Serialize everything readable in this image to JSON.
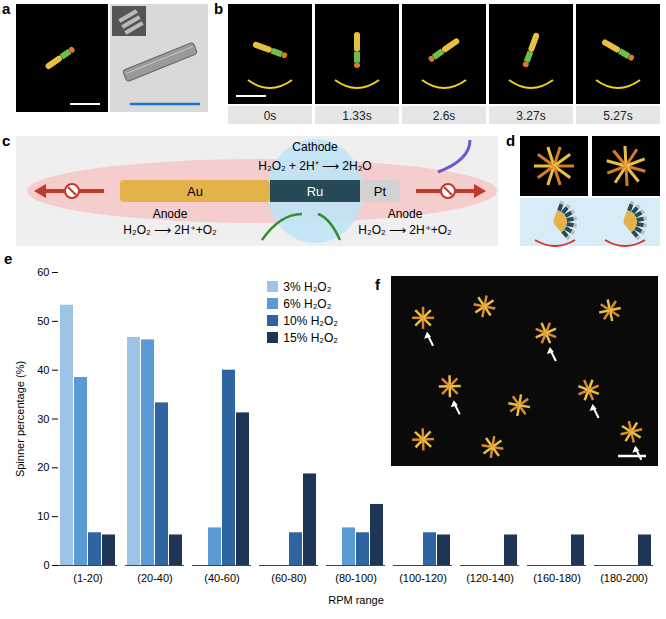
{
  "panels": {
    "a": {
      "label": "a"
    },
    "b": {
      "label": "b",
      "times": [
        "0s",
        "1.33s",
        "2.6s",
        "3.27s",
        "5.27s"
      ]
    },
    "c": {
      "label": "c",
      "segments": [
        "Au",
        "Ru",
        "Pt"
      ],
      "cathode": {
        "label": "Cathode",
        "reaction": "H₂O₂ + 2H⁺ ⟶ 2H₂O"
      },
      "anodes": [
        {
          "label": "Anode",
          "reaction": "H₂O₂ ⟶ 2H⁺+O₂"
        },
        {
          "label": "Anode",
          "reaction": "H₂O₂ ⟶ 2H⁺+O₂"
        }
      ]
    },
    "d": {
      "label": "d"
    },
    "e": {
      "label": "e"
    },
    "f": {
      "label": "f"
    }
  },
  "chart_data": {
    "type": "bar",
    "x_label": "RPM range",
    "y_label": "Spinner percentage (%)",
    "categories": [
      "(1-20)",
      "(20-40)",
      "(40-60)",
      "(60-80)",
      "(80-100)",
      "(100-120)",
      "(120-140)",
      "(160-180)",
      "(180-200)"
    ],
    "series": [
      {
        "name": "3% H₂O₂",
        "color": "#9DC3E6",
        "values": [
          53.3,
          46.7,
          0,
          0,
          0,
          0,
          0,
          0,
          0
        ]
      },
      {
        "name": "6% H₂O₂",
        "color": "#5B9BD5",
        "values": [
          38.5,
          46.2,
          7.7,
          0,
          7.7,
          0,
          0,
          0,
          0
        ]
      },
      {
        "name": "10% H₂O₂",
        "color": "#2E64A0",
        "values": [
          6.7,
          33.3,
          40,
          6.7,
          6.7,
          6.7,
          0,
          0,
          0
        ]
      },
      {
        "name": "15% H₂O₂",
        "color": "#1F3556",
        "values": [
          6.25,
          6.25,
          31.25,
          18.75,
          12.5,
          6.25,
          6.25,
          6.25,
          6.25
        ]
      }
    ],
    "ylim": [
      0,
      60
    ],
    "yticks": [
      0,
      10,
      20,
      30,
      40,
      50,
      60
    ],
    "grid": false,
    "legend": "top"
  }
}
